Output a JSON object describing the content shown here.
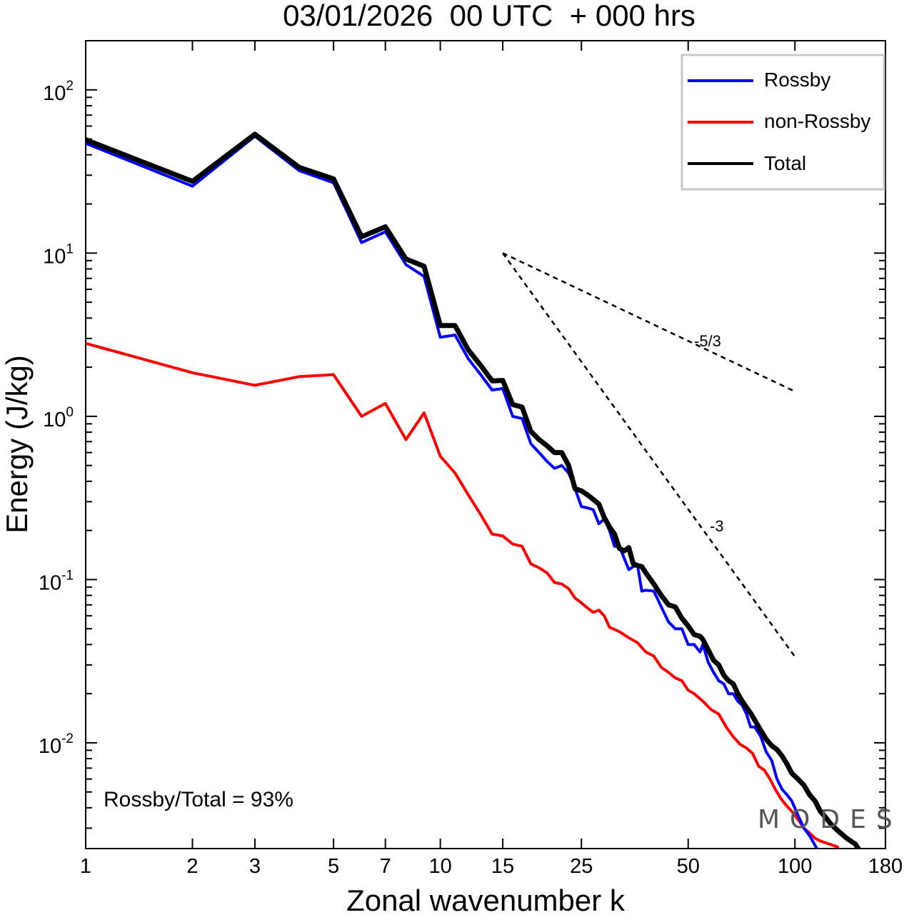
{
  "chart_data": {
    "type": "line",
    "title": "03/01/2026  00 UTC  + 000 hrs",
    "xlabel": "Zonal wavenumber k",
    "ylabel": "Energy (J/kg)",
    "xscale": "log",
    "yscale": "log",
    "xlim": [
      1,
      180
    ],
    "ylim": [
      0.00225,
      200
    ],
    "x_ticks": [
      1,
      2,
      3,
      5,
      7,
      10,
      15,
      25,
      50,
      100,
      180
    ],
    "x_tick_labels": [
      "1",
      "2",
      "3",
      "5",
      "7",
      "10",
      "15",
      "25",
      "50",
      "100",
      "180"
    ],
    "y_ticks": [
      {
        "value": 100,
        "base": "10",
        "exp": "2"
      },
      {
        "value": 10,
        "base": "10",
        "exp": "1"
      },
      {
        "value": 1,
        "base": "10",
        "exp": "0"
      },
      {
        "value": 0.1,
        "base": "10",
        "exp": "-1"
      },
      {
        "value": 0.01,
        "base": "10",
        "exp": "-2"
      }
    ],
    "grid": false,
    "legend": {
      "position": "top-right",
      "entries": [
        {
          "label": "Rossby",
          "color": "#0000ff"
        },
        {
          "label": "non-Rossby",
          "color": "#ff0000"
        },
        {
          "label": "Total",
          "color": "#000000"
        }
      ]
    },
    "annotation": "Rossby/Total = 93%",
    "watermark": "MODES",
    "watermark_mark": "©",
    "reference_lines": [
      {
        "label": "-5/3",
        "slope": -1.6667,
        "x": [
          15,
          100
        ],
        "y": [
          10,
          1.42
        ]
      },
      {
        "label": "-3",
        "slope": -3,
        "x": [
          15,
          100
        ],
        "y": [
          10,
          0.0337
        ]
      }
    ],
    "series": [
      {
        "name": "Rossby",
        "color": "#0000ff",
        "points": [
          [
            1,
            47
          ],
          [
            2,
            25.7
          ],
          [
            3,
            52
          ],
          [
            4,
            32
          ],
          [
            5,
            27
          ],
          [
            6,
            11.6
          ],
          [
            7,
            13.5
          ],
          [
            8,
            8.5
          ],
          [
            9,
            7.2
          ],
          [
            10,
            3.05
          ],
          [
            11,
            3.15
          ],
          [
            12,
            2.25
          ],
          [
            13,
            1.8
          ],
          [
            14,
            1.45
          ],
          [
            15,
            1.48
          ],
          [
            16,
            1.0
          ],
          [
            17,
            0.97
          ],
          [
            18,
            0.68
          ],
          [
            19,
            0.6
          ],
          [
            20,
            0.53
          ],
          [
            21,
            0.48
          ],
          [
            22,
            0.5
          ],
          [
            23,
            0.45
          ],
          [
            24,
            0.36
          ],
          [
            25,
            0.28
          ],
          [
            26,
            0.275
          ],
          [
            27,
            0.268
          ],
          [
            28,
            0.22
          ],
          [
            29,
            0.235
          ],
          [
            30,
            0.2
          ],
          [
            31,
            0.16
          ],
          [
            32,
            0.16
          ],
          [
            33,
            0.135
          ],
          [
            34,
            0.115
          ],
          [
            35,
            0.12
          ],
          [
            36,
            0.122
          ],
          [
            37,
            0.085
          ],
          [
            38,
            0.086
          ],
          [
            40,
            0.085
          ],
          [
            42,
            0.068
          ],
          [
            44,
            0.055
          ],
          [
            46,
            0.05
          ],
          [
            48,
            0.05
          ],
          [
            50,
            0.04
          ],
          [
            52,
            0.04
          ],
          [
            54,
            0.036
          ],
          [
            55,
            0.04
          ],
          [
            57,
            0.031
          ],
          [
            59,
            0.027
          ],
          [
            61,
            0.024
          ],
          [
            63,
            0.023
          ],
          [
            65,
            0.02
          ],
          [
            67,
            0.02
          ],
          [
            69,
            0.018
          ],
          [
            71,
            0.017
          ],
          [
            73,
            0.015
          ],
          [
            75,
            0.0125
          ],
          [
            77,
            0.0125
          ],
          [
            80,
            0.011
          ],
          [
            83,
            0.0088
          ],
          [
            86,
            0.0078
          ],
          [
            89,
            0.006
          ],
          [
            92,
            0.0052
          ],
          [
            95,
            0.0048
          ],
          [
            98,
            0.0044
          ],
          [
            102,
            0.0036
          ],
          [
            106,
            0.003
          ],
          [
            110,
            0.0027
          ],
          [
            116,
            0.0022
          ]
        ]
      },
      {
        "name": "non-Rossby",
        "color": "#ff0000",
        "points": [
          [
            1,
            2.8
          ],
          [
            2,
            1.85
          ],
          [
            3,
            1.55
          ],
          [
            4,
            1.75
          ],
          [
            5,
            1.8
          ],
          [
            6,
            1.0
          ],
          [
            7,
            1.2
          ],
          [
            8,
            0.72
          ],
          [
            9,
            1.05
          ],
          [
            10,
            0.57
          ],
          [
            11,
            0.45
          ],
          [
            12,
            0.33
          ],
          [
            13,
            0.25
          ],
          [
            14,
            0.19
          ],
          [
            15,
            0.185
          ],
          [
            16,
            0.165
          ],
          [
            17,
            0.16
          ],
          [
            18,
            0.125
          ],
          [
            19,
            0.118
          ],
          [
            20,
            0.11
          ],
          [
            21,
            0.096
          ],
          [
            22,
            0.094
          ],
          [
            23,
            0.088
          ],
          [
            24,
            0.077
          ],
          [
            25,
            0.072
          ],
          [
            26,
            0.067
          ],
          [
            27,
            0.063
          ],
          [
            28,
            0.065
          ],
          [
            29,
            0.06
          ],
          [
            30,
            0.051
          ],
          [
            32,
            0.048
          ],
          [
            34,
            0.044
          ],
          [
            36,
            0.041
          ],
          [
            38,
            0.036
          ],
          [
            40,
            0.034
          ],
          [
            42,
            0.029
          ],
          [
            44,
            0.027
          ],
          [
            46,
            0.025
          ],
          [
            48,
            0.024
          ],
          [
            50,
            0.021
          ],
          [
            52,
            0.02
          ],
          [
            55,
            0.018
          ],
          [
            58,
            0.016
          ],
          [
            61,
            0.015
          ],
          [
            64,
            0.0125
          ],
          [
            67,
            0.0109
          ],
          [
            70,
            0.0098
          ],
          [
            73,
            0.0093
          ],
          [
            76,
            0.0086
          ],
          [
            79,
            0.0072
          ],
          [
            82,
            0.0068
          ],
          [
            85,
            0.006
          ],
          [
            88,
            0.0052
          ],
          [
            91,
            0.0046
          ],
          [
            94,
            0.0042
          ],
          [
            98,
            0.0038
          ],
          [
            102,
            0.0034
          ],
          [
            106,
            0.003
          ],
          [
            110,
            0.0028
          ],
          [
            114,
            0.0026
          ],
          [
            118,
            0.0025
          ],
          [
            125,
            0.0024
          ],
          [
            132,
            0.0023
          ]
        ]
      },
      {
        "name": "Total",
        "color": "#000000",
        "points": [
          [
            1,
            49.5
          ],
          [
            2,
            27.5
          ],
          [
            3,
            53.5
          ],
          [
            4,
            33.5
          ],
          [
            5,
            28.5
          ],
          [
            6,
            12.6
          ],
          [
            7,
            14.5
          ],
          [
            8,
            9.2
          ],
          [
            9,
            8.3
          ],
          [
            10,
            3.6
          ],
          [
            11,
            3.6
          ],
          [
            12,
            2.55
          ],
          [
            13,
            2.05
          ],
          [
            14,
            1.65
          ],
          [
            15,
            1.66
          ],
          [
            16,
            1.18
          ],
          [
            17,
            1.14
          ],
          [
            18,
            0.81
          ],
          [
            19,
            0.72
          ],
          [
            20,
            0.66
          ],
          [
            21,
            0.6
          ],
          [
            22,
            0.6
          ],
          [
            23,
            0.5
          ],
          [
            24,
            0.36
          ],
          [
            25,
            0.35
          ],
          [
            26,
            0.33
          ],
          [
            27,
            0.31
          ],
          [
            28,
            0.29
          ],
          [
            29,
            0.24
          ],
          [
            30,
            0.21
          ],
          [
            31,
            0.19
          ],
          [
            32,
            0.155
          ],
          [
            33,
            0.15
          ],
          [
            34,
            0.157
          ],
          [
            35,
            0.125
          ],
          [
            36,
            0.122
          ],
          [
            37,
            0.12
          ],
          [
            38,
            0.11
          ],
          [
            40,
            0.094
          ],
          [
            42,
            0.08
          ],
          [
            44,
            0.07
          ],
          [
            46,
            0.068
          ],
          [
            48,
            0.058
          ],
          [
            50,
            0.052
          ],
          [
            52,
            0.046
          ],
          [
            54,
            0.045
          ],
          [
            55,
            0.043
          ],
          [
            57,
            0.037
          ],
          [
            59,
            0.032
          ],
          [
            61,
            0.03
          ],
          [
            63,
            0.026
          ],
          [
            65,
            0.024
          ],
          [
            67,
            0.023
          ],
          [
            69,
            0.02
          ],
          [
            71,
            0.018
          ],
          [
            73,
            0.0165
          ],
          [
            75,
            0.0152
          ],
          [
            77,
            0.0138
          ],
          [
            80,
            0.012
          ],
          [
            83,
            0.0105
          ],
          [
            86,
            0.0096
          ],
          [
            89,
            0.0091
          ],
          [
            92,
            0.0083
          ],
          [
            95,
            0.0074
          ],
          [
            98,
            0.0065
          ],
          [
            102,
            0.006
          ],
          [
            106,
            0.0055
          ],
          [
            110,
            0.0048
          ],
          [
            114,
            0.0044
          ],
          [
            118,
            0.0038
          ],
          [
            122,
            0.0035
          ],
          [
            126,
            0.0032
          ],
          [
            132,
            0.0029
          ],
          [
            140,
            0.0026
          ],
          [
            148,
            0.0024
          ],
          [
            152,
            0.0022
          ]
        ]
      }
    ]
  }
}
